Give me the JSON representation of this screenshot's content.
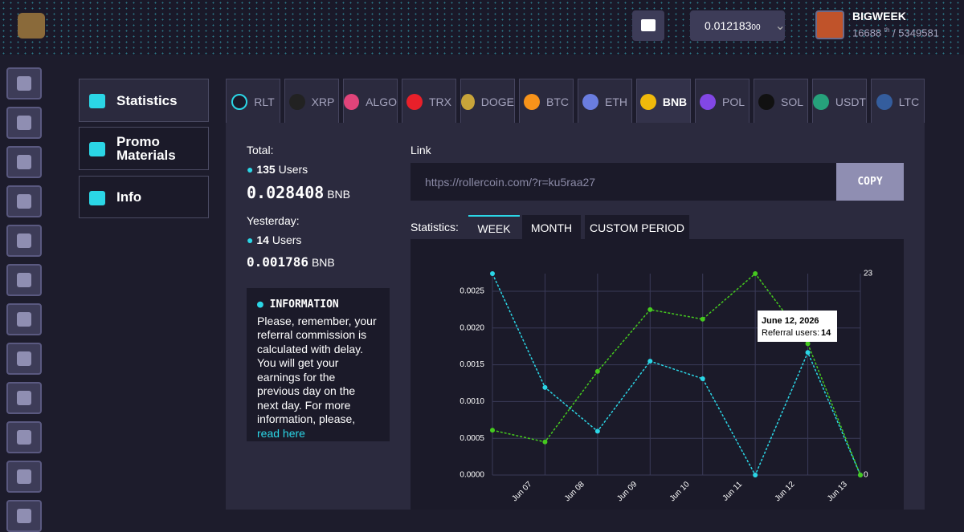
{
  "header": {
    "balance": "0.012183",
    "balance_small": "00",
    "username": "BIGWEEK",
    "rank": "16688",
    "rank_suffix": "th",
    "rank_total": "/ 5349581"
  },
  "sidebar_tabs": [
    "Statistics",
    "Promo Materials",
    "Info"
  ],
  "currency_tabs": [
    "RLT",
    "XRP",
    "ALGO",
    "TRX",
    "DOGE",
    "BTC",
    "ETH",
    "BNB",
    "POL",
    "SOL",
    "USDT",
    "LTC"
  ],
  "total": {
    "label": "Total:",
    "users": "135",
    "users_label": "Users",
    "amount": "0.028408",
    "unit": "BNB"
  },
  "yesterday": {
    "label": "Yesterday:",
    "users": "14",
    "users_label": "Users",
    "amount": "0.001786",
    "unit": "BNB"
  },
  "information": {
    "title": "INFORMATION",
    "text": "Please, remember, your referral commission is calculated with delay. You will get your earnings for the previous day on the next day. For more information, please,",
    "link": "read here"
  },
  "link": {
    "label": "Link",
    "url": "https://rollercoin.com/?r=ku5raa27",
    "button": "COPY"
  },
  "statistics": {
    "label": "Statistics:",
    "periods": [
      "WEEK",
      "MONTH",
      "CUSTOM PERIOD"
    ]
  },
  "chart_data": {
    "type": "line",
    "categories": [
      null,
      "Jun 07",
      "Jun 08",
      "Jun 09",
      "Jun 10",
      "Jun 11",
      "Jun 12",
      "Jun 13"
    ],
    "series": [
      {
        "color": "#2bd6e6",
        "axis": "y2",
        "values": [
          23,
          10,
          5,
          13,
          11,
          0,
          14,
          0
        ]
      },
      {
        "color": "#45c91f",
        "values": [
          0.00061,
          0.00045,
          0.00141,
          0.00225,
          0.00212,
          0.00274,
          0.001786,
          0
        ]
      }
    ],
    "ylim": [
      0,
      0.00274
    ],
    "yticks": [
      {
        "value": 0,
        "label": "0.0000"
      },
      {
        "value": 0.0005,
        "label": "0.0005"
      },
      {
        "value": 0.001,
        "label": "0.0010"
      },
      {
        "value": 0.0015,
        "label": "0.0015"
      },
      {
        "value": 0.002,
        "label": "0.0020"
      },
      {
        "value": 0.0025,
        "label": "0.0025"
      }
    ],
    "y2lim": [
      0,
      23
    ],
    "y2ticks": [
      0,
      23
    ],
    "grid": true,
    "tooltip": {
      "title": "June 12, 2026",
      "label": "Referral users:"
    }
  }
}
